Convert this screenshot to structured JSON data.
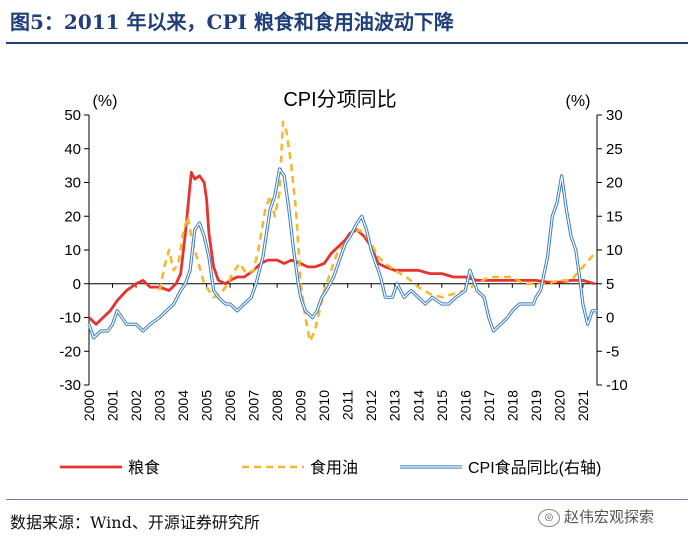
{
  "figure_title": "图5：2011 年以来，CPI 粮食和食用油波动下降",
  "source_text": "数据来源：Wind、开源证券研究所",
  "watermark_text": "赵伟宏观探索",
  "colors": {
    "grain": "#e8322e",
    "oil": "#f7b731",
    "cpi_food": "#3a7dc2",
    "title": "#1f3f7a"
  },
  "chart_data": {
    "type": "line",
    "title": "CPI分项同比",
    "left_unit": "(%)",
    "right_unit": "(%)",
    "ylim_left": [
      -30,
      50
    ],
    "yticks_left": [
      -30,
      -20,
      -10,
      0,
      10,
      20,
      30,
      40,
      50
    ],
    "ylim_right": [
      -10,
      30
    ],
    "yticks_right": [
      -10,
      -5,
      0,
      5,
      10,
      15,
      20,
      25,
      30
    ],
    "xlim": [
      2000,
      2021.6
    ],
    "x_tick_labels": [
      "2000",
      "2001",
      "2002",
      "2003",
      "2004",
      "2005",
      "2006",
      "2007",
      "2008",
      "2009",
      "2010",
      "2011",
      "2012",
      "2013",
      "2014",
      "2015",
      "2016",
      "2017",
      "2018",
      "2019",
      "2020",
      "2021"
    ],
    "legend": [
      "粮食",
      "食用油",
      "CPI食品同比(右轴)"
    ],
    "legend_position": "bottom",
    "series": [
      {
        "name": "粮食",
        "axis": "left",
        "style": "solid",
        "points": [
          [
            2000.0,
            -10
          ],
          [
            2000.3,
            -12
          ],
          [
            2000.6,
            -10
          ],
          [
            2000.9,
            -8
          ],
          [
            2001.2,
            -5
          ],
          [
            2001.6,
            -2
          ],
          [
            2002.0,
            0
          ],
          [
            2002.3,
            1
          ],
          [
            2002.6,
            -1
          ],
          [
            2003.0,
            -1
          ],
          [
            2003.4,
            -2
          ],
          [
            2003.7,
            0
          ],
          [
            2003.9,
            3
          ],
          [
            2004.1,
            15
          ],
          [
            2004.25,
            26
          ],
          [
            2004.35,
            33
          ],
          [
            2004.5,
            31
          ],
          [
            2004.7,
            32
          ],
          [
            2004.9,
            30
          ],
          [
            2005.0,
            25
          ],
          [
            2005.1,
            15
          ],
          [
            2005.3,
            5
          ],
          [
            2005.5,
            1
          ],
          [
            2005.8,
            0
          ],
          [
            2006.0,
            1
          ],
          [
            2006.3,
            2
          ],
          [
            2006.6,
            2
          ],
          [
            2007.0,
            4
          ],
          [
            2007.3,
            6
          ],
          [
            2007.6,
            7
          ],
          [
            2008.0,
            7
          ],
          [
            2008.3,
            6
          ],
          [
            2008.6,
            7
          ],
          [
            2009.0,
            6
          ],
          [
            2009.3,
            5
          ],
          [
            2009.6,
            5
          ],
          [
            2010.0,
            6
          ],
          [
            2010.3,
            9
          ],
          [
            2010.6,
            11
          ],
          [
            2010.9,
            13
          ],
          [
            2011.1,
            15
          ],
          [
            2011.4,
            16
          ],
          [
            2011.7,
            14
          ],
          [
            2012.0,
            11
          ],
          [
            2012.3,
            6
          ],
          [
            2012.6,
            5
          ],
          [
            2013.0,
            4
          ],
          [
            2013.5,
            4
          ],
          [
            2014.0,
            4
          ],
          [
            2014.5,
            3
          ],
          [
            2015.0,
            3
          ],
          [
            2015.5,
            2
          ],
          [
            2016.0,
            2
          ],
          [
            2016.5,
            1
          ],
          [
            2017.0,
            1
          ],
          [
            2017.5,
            1
          ],
          [
            2018.0,
            1
          ],
          [
            2018.5,
            1
          ],
          [
            2019.0,
            1
          ],
          [
            2019.5,
            0.5
          ],
          [
            2020.0,
            0.5
          ],
          [
            2020.5,
            1
          ],
          [
            2021.0,
            1
          ],
          [
            2021.5,
            0
          ]
        ]
      },
      {
        "name": "食用油",
        "axis": "left",
        "style": "dashed",
        "points": [
          [
            2003.0,
            -2
          ],
          [
            2003.2,
            5
          ],
          [
            2003.4,
            10
          ],
          [
            2003.6,
            4
          ],
          [
            2003.8,
            6
          ],
          [
            2004.0,
            15
          ],
          [
            2004.2,
            20
          ],
          [
            2004.35,
            14
          ],
          [
            2004.5,
            10
          ],
          [
            2004.7,
            5
          ],
          [
            2004.9,
            0
          ],
          [
            2005.1,
            -2
          ],
          [
            2005.3,
            -4
          ],
          [
            2005.6,
            -3
          ],
          [
            2005.9,
            0
          ],
          [
            2006.1,
            3
          ],
          [
            2006.4,
            6
          ],
          [
            2006.7,
            3
          ],
          [
            2007.0,
            4
          ],
          [
            2007.2,
            10
          ],
          [
            2007.5,
            22
          ],
          [
            2007.7,
            26
          ],
          [
            2007.9,
            20
          ],
          [
            2008.1,
            27
          ],
          [
            2008.25,
            48
          ],
          [
            2008.4,
            45
          ],
          [
            2008.6,
            35
          ],
          [
            2008.8,
            22
          ],
          [
            2009.0,
            0
          ],
          [
            2009.2,
            -10
          ],
          [
            2009.4,
            -17
          ],
          [
            2009.6,
            -14
          ],
          [
            2009.8,
            -8
          ],
          [
            2010.0,
            -2
          ],
          [
            2010.3,
            4
          ],
          [
            2010.6,
            10
          ],
          [
            2010.9,
            12
          ],
          [
            2011.2,
            15
          ],
          [
            2011.5,
            16
          ],
          [
            2011.8,
            14
          ],
          [
            2012.0,
            12
          ],
          [
            2012.3,
            8
          ],
          [
            2012.6,
            6
          ],
          [
            2013.0,
            4
          ],
          [
            2013.5,
            2
          ],
          [
            2014.0,
            -1
          ],
          [
            2014.5,
            -3
          ],
          [
            2015.0,
            -4
          ],
          [
            2015.5,
            -3
          ],
          [
            2016.0,
            -2
          ],
          [
            2016.5,
            0
          ],
          [
            2017.0,
            2
          ],
          [
            2017.5,
            2
          ],
          [
            2018.0,
            2
          ],
          [
            2018.5,
            0
          ],
          [
            2019.0,
            0
          ],
          [
            2019.5,
            0
          ],
          [
            2020.0,
            1
          ],
          [
            2020.5,
            1
          ],
          [
            2021.0,
            5
          ],
          [
            2021.5,
            9
          ]
        ]
      },
      {
        "name": "CPI食品同比(右轴)",
        "axis": "right",
        "style": "double",
        "points": [
          [
            2000.0,
            -1
          ],
          [
            2000.2,
            -3
          ],
          [
            2000.5,
            -2
          ],
          [
            2000.8,
            -2
          ],
          [
            2001.0,
            -1
          ],
          [
            2001.2,
            1
          ],
          [
            2001.4,
            0
          ],
          [
            2001.6,
            -1
          ],
          [
            2001.8,
            -1
          ],
          [
            2002.0,
            -1
          ],
          [
            2002.3,
            -2
          ],
          [
            2002.6,
            -1
          ],
          [
            2003.0,
            0
          ],
          [
            2003.3,
            1
          ],
          [
            2003.6,
            2
          ],
          [
            2003.9,
            4
          ],
          [
            2004.1,
            5
          ],
          [
            2004.3,
            7
          ],
          [
            2004.5,
            13
          ],
          [
            2004.7,
            14
          ],
          [
            2004.9,
            12
          ],
          [
            2005.1,
            9
          ],
          [
            2005.3,
            4
          ],
          [
            2005.5,
            3
          ],
          [
            2005.8,
            2
          ],
          [
            2006.0,
            2
          ],
          [
            2006.3,
            1
          ],
          [
            2006.6,
            2
          ],
          [
            2006.9,
            3
          ],
          [
            2007.1,
            5
          ],
          [
            2007.4,
            9
          ],
          [
            2007.7,
            16
          ],
          [
            2007.9,
            18
          ],
          [
            2008.1,
            22
          ],
          [
            2008.3,
            21
          ],
          [
            2008.5,
            16
          ],
          [
            2008.7,
            10
          ],
          [
            2008.9,
            5
          ],
          [
            2009.0,
            3
          ],
          [
            2009.2,
            1
          ],
          [
            2009.5,
            0
          ],
          [
            2009.7,
            1
          ],
          [
            2009.9,
            3
          ],
          [
            2010.1,
            4
          ],
          [
            2010.4,
            6
          ],
          [
            2010.6,
            8
          ],
          [
            2010.9,
            11
          ],
          [
            2011.1,
            12
          ],
          [
            2011.4,
            14
          ],
          [
            2011.6,
            15
          ],
          [
            2011.8,
            13
          ],
          [
            2012.0,
            10
          ],
          [
            2012.2,
            8
          ],
          [
            2012.4,
            6
          ],
          [
            2012.6,
            3
          ],
          [
            2012.9,
            3
          ],
          [
            2013.1,
            5
          ],
          [
            2013.4,
            3
          ],
          [
            2013.7,
            4
          ],
          [
            2014.0,
            3
          ],
          [
            2014.3,
            2
          ],
          [
            2014.6,
            3
          ],
          [
            2015.0,
            2
          ],
          [
            2015.3,
            2
          ],
          [
            2015.6,
            3
          ],
          [
            2016.0,
            4
          ],
          [
            2016.2,
            7
          ],
          [
            2016.5,
            4
          ],
          [
            2016.8,
            3
          ],
          [
            2017.0,
            0
          ],
          [
            2017.2,
            -2
          ],
          [
            2017.5,
            -1
          ],
          [
            2017.8,
            0
          ],
          [
            2018.0,
            1
          ],
          [
            2018.3,
            2
          ],
          [
            2018.6,
            2
          ],
          [
            2018.9,
            2
          ],
          [
            2019.0,
            3
          ],
          [
            2019.2,
            4
          ],
          [
            2019.5,
            9
          ],
          [
            2019.7,
            15
          ],
          [
            2019.9,
            17
          ],
          [
            2020.1,
            21
          ],
          [
            2020.3,
            16
          ],
          [
            2020.5,
            12
          ],
          [
            2020.7,
            10
          ],
          [
            2020.9,
            5
          ],
          [
            2021.0,
            2
          ],
          [
            2021.2,
            -1
          ],
          [
            2021.4,
            1
          ],
          [
            2021.6,
            1
          ]
        ]
      }
    ]
  }
}
